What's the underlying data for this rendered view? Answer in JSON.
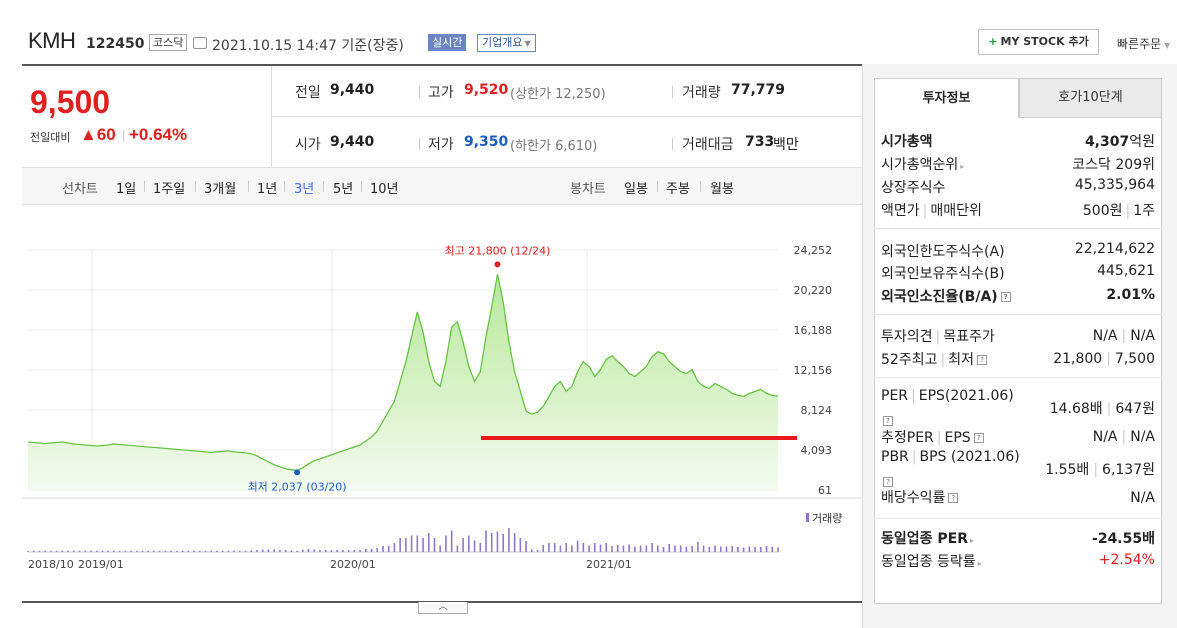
{
  "header": {
    "name": "KMH",
    "code": "122450",
    "market": "코스닥",
    "datetime": "2021.10.15 14:47 기준(장중)",
    "realtime": "실시간",
    "company_info": "기업개요",
    "mystock_btn": "MY STOCK 추가",
    "quick_order": "빠른주문"
  },
  "quote": {
    "price": "9,500",
    "change_label": "전일대비",
    "change": "60",
    "change_rate": "+0.64%",
    "prev_close_label": "전일",
    "prev_close": "9,440",
    "high_label": "고가",
    "high": "9,520",
    "upper_limit": "(상한가 12,250)",
    "volume_label": "거래량",
    "volume": "77,779",
    "open_label": "시가",
    "open": "9,440",
    "low_label": "저가",
    "low": "9,350",
    "lower_limit": "(하한가 6,610)",
    "amount_label": "거래대금",
    "amount": "733",
    "amount_unit": "백만"
  },
  "periods": {
    "line_label": "선차트",
    "line": [
      "1일",
      "1주일",
      "3개월",
      "1년",
      "3년",
      "5년",
      "10년"
    ],
    "active": "3년",
    "candle_label": "봉차트",
    "candle": [
      "일봉",
      "주봉",
      "월봉"
    ]
  },
  "chart_data": {
    "type": "area",
    "y_ticks": [
      "24,252",
      "20,220",
      "16,188",
      "12,156",
      "8,124",
      "4,093",
      "61"
    ],
    "ylim": [
      61,
      24252
    ],
    "x_ticks": [
      "2018/10",
      "2019/01",
      "2020/01",
      "2021/01"
    ],
    "annotation_high": "최고 21,800 (12/24)",
    "annotation_low": "최저 2,037 (03/20)",
    "volume_label": "거래량",
    "price_series": [
      4900,
      4850,
      4800,
      4750,
      4800,
      4850,
      4900,
      4800,
      4700,
      4650,
      4600,
      4550,
      4500,
      4550,
      4600,
      4700,
      4650,
      4600,
      4550,
      4500,
      4450,
      4400,
      4350,
      4300,
      4250,
      4200,
      4150,
      4100,
      4050,
      4000,
      3950,
      3900,
      3850,
      3900,
      3950,
      4000,
      3900,
      3850,
      3800,
      3700,
      3500,
      3200,
      2900,
      2600,
      2400,
      2200,
      2100,
      2037,
      2300,
      2700,
      3000,
      3200,
      3400,
      3600,
      3800,
      4000,
      4200,
      4400,
      4600,
      5000,
      5400,
      6000,
      7000,
      8000,
      9000,
      11000,
      13000,
      15500,
      18000,
      16000,
      13000,
      11000,
      10500,
      13000,
      16500,
      17000,
      15000,
      12500,
      11000,
      12000,
      15500,
      18500,
      21800,
      19000,
      15000,
      12000,
      10000,
      8000,
      7700,
      7900,
      8500,
      9500,
      10500,
      11000,
      10000,
      10500,
      12000,
      13000,
      12500,
      11500,
      12200,
      13200,
      13600,
      13000,
      12500,
      11800,
      11500,
      12000,
      12500,
      13500,
      14000,
      13800,
      13000,
      12500,
      12000,
      11800,
      12200,
      11000,
      10500,
      10300,
      10800,
      10500,
      10200,
      9800,
      9600,
      9500,
      9800,
      10000,
      10200,
      9800,
      9600,
      9500
    ]
  },
  "accent": {
    "up": "#e02020",
    "down": "#1a5fbf",
    "area": "#b6e89a",
    "line": "#66c341",
    "volume": "#8e78c8",
    "highlight": "#e8181c"
  },
  "info": {
    "tabs": [
      "투자정보",
      "호가10단계"
    ],
    "market_cap_label": "시가총액",
    "market_cap": "4,307",
    "market_cap_unit": "억원",
    "rank_label": "시가총액순위",
    "rank": "코스닥 209위",
    "shares_label": "상장주식수",
    "shares": "45,335,964",
    "par_label": "액면가",
    "unit_label": "매매단위",
    "par": "500원",
    "unit": "1주",
    "foreign_limit_label": "외국인한도주식수(A)",
    "foreign_limit": "22,214,622",
    "foreign_hold_label": "외국인보유주식수(B)",
    "foreign_hold": "445,621",
    "foreign_rate_label": "외국인소진율(B/A)",
    "foreign_rate": "2.01%",
    "opinion_label": "투자의견",
    "target_label": "목표주가",
    "opinion": "N/A",
    "target": "N/A",
    "w52_high_label": "52주최고",
    "w52_low_label": "최저",
    "w52_high": "21,800",
    "w52_low": "7,500",
    "per_label": "PER",
    "eps_label": "EPS(2021.06)",
    "per": "14.68배",
    "eps": "647원",
    "est_per_label": "추정PER",
    "est_eps_label": "EPS",
    "est_per": "N/A",
    "est_eps": "N/A",
    "pbr_label": "PBR",
    "bps_label": "BPS (2021.06)",
    "pbr": "1.55배",
    "bps": "6,137원",
    "dividend_label": "배당수익률",
    "dividend": "N/A",
    "industry_per_label": "동일업종 PER",
    "industry_per": "-24.55배",
    "industry_rate_label": "동일업종 등락률",
    "industry_rate": "+2.54%"
  }
}
